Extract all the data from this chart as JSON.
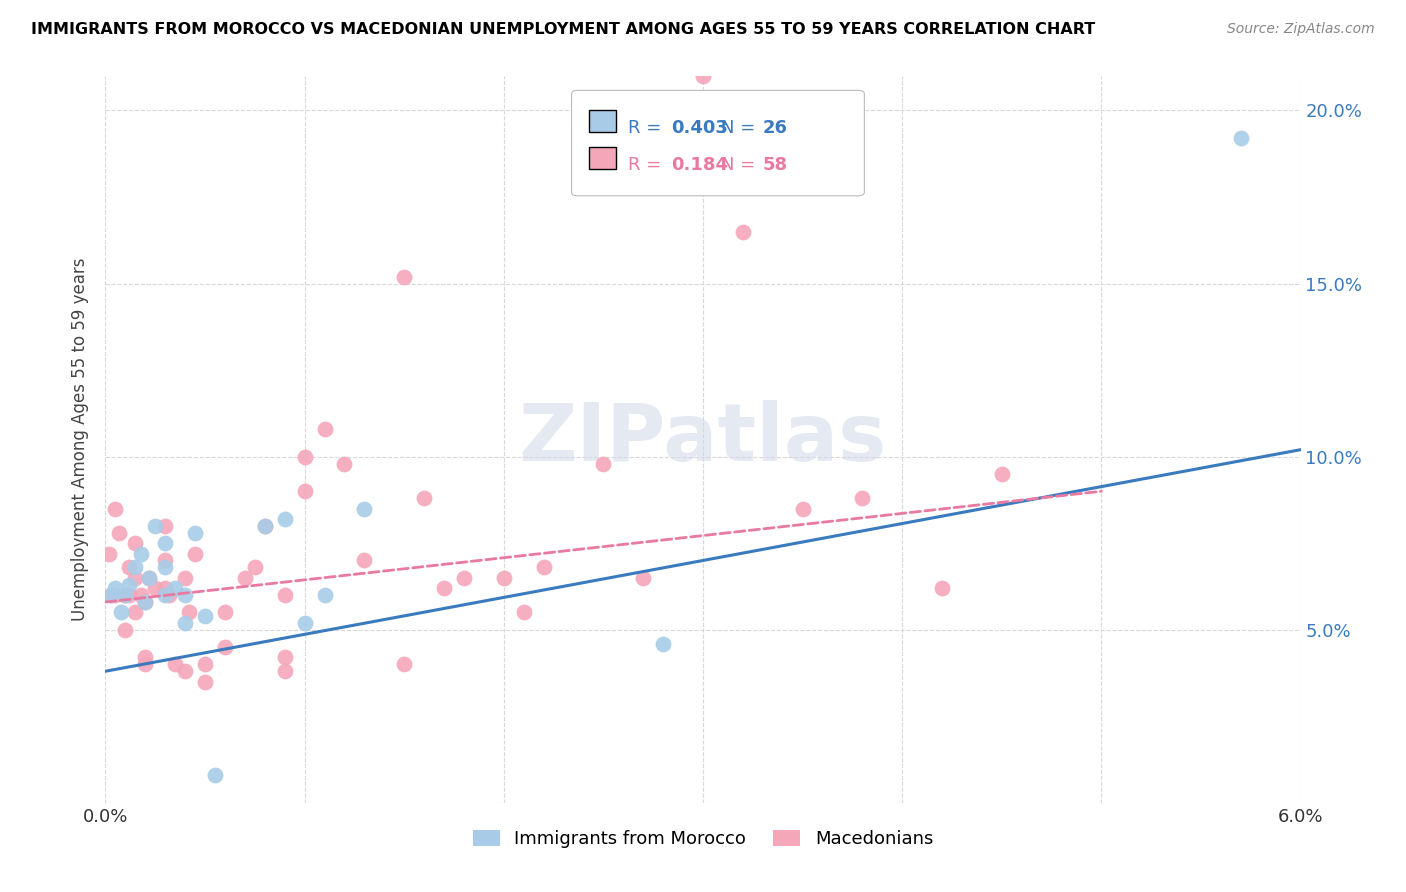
{
  "title": "IMMIGRANTS FROM MOROCCO VS MACEDONIAN UNEMPLOYMENT AMONG AGES 55 TO 59 YEARS CORRELATION CHART",
  "source": "Source: ZipAtlas.com",
  "ylabel": "Unemployment Among Ages 55 to 59 years",
  "xlim": [
    0.0,
    0.06
  ],
  "ylim": [
    0.0,
    0.21
  ],
  "xtick_positions": [
    0.0,
    0.01,
    0.02,
    0.03,
    0.04,
    0.05,
    0.06
  ],
  "xtick_labels": [
    "0.0%",
    "",
    "",
    "",
    "",
    "",
    "6.0%"
  ],
  "ytick_positions": [
    0.0,
    0.05,
    0.1,
    0.15,
    0.2
  ],
  "ytick_labels_right": [
    "",
    "5.0%",
    "10.0%",
    "15.0%",
    "20.0%"
  ],
  "blue_scatter_color": "#a8cce8",
  "pink_scatter_color": "#f4a7b9",
  "blue_line_color": "#3a7bbf",
  "pink_line_color": "#e87aa0",
  "legend_R_blue": "0.403",
  "legend_N_blue": "26",
  "legend_R_pink": "0.184",
  "legend_N_pink": "58",
  "legend_label_blue": "Immigrants from Morocco",
  "legend_label_pink": "Macedonians",
  "blue_x": [
    0.0003,
    0.0005,
    0.0008,
    0.001,
    0.0012,
    0.0015,
    0.0018,
    0.002,
    0.0022,
    0.0025,
    0.003,
    0.003,
    0.003,
    0.0035,
    0.004,
    0.004,
    0.0045,
    0.005,
    0.0055,
    0.008,
    0.009,
    0.01,
    0.011,
    0.013,
    0.028,
    0.057
  ],
  "blue_y": [
    0.06,
    0.062,
    0.055,
    0.06,
    0.063,
    0.068,
    0.072,
    0.058,
    0.065,
    0.08,
    0.06,
    0.068,
    0.075,
    0.062,
    0.06,
    0.052,
    0.078,
    0.054,
    0.008,
    0.08,
    0.082,
    0.052,
    0.06,
    0.085,
    0.046,
    0.192
  ],
  "pink_x": [
    0.0002,
    0.0003,
    0.0005,
    0.0005,
    0.0007,
    0.001,
    0.001,
    0.0012,
    0.0012,
    0.0015,
    0.0015,
    0.0015,
    0.0018,
    0.002,
    0.002,
    0.002,
    0.0022,
    0.0025,
    0.003,
    0.003,
    0.003,
    0.0032,
    0.0035,
    0.004,
    0.004,
    0.0042,
    0.0045,
    0.005,
    0.005,
    0.006,
    0.006,
    0.007,
    0.0075,
    0.008,
    0.009,
    0.009,
    0.009,
    0.01,
    0.01,
    0.011,
    0.012,
    0.013,
    0.015,
    0.015,
    0.016,
    0.017,
    0.018,
    0.02,
    0.021,
    0.022,
    0.025,
    0.027,
    0.03,
    0.032,
    0.035,
    0.038,
    0.042,
    0.045
  ],
  "pink_y": [
    0.072,
    0.06,
    0.085,
    0.06,
    0.078,
    0.06,
    0.05,
    0.06,
    0.068,
    0.075,
    0.055,
    0.065,
    0.06,
    0.04,
    0.042,
    0.058,
    0.065,
    0.062,
    0.062,
    0.07,
    0.08,
    0.06,
    0.04,
    0.038,
    0.065,
    0.055,
    0.072,
    0.035,
    0.04,
    0.045,
    0.055,
    0.065,
    0.068,
    0.08,
    0.06,
    0.038,
    0.042,
    0.09,
    0.1,
    0.108,
    0.098,
    0.07,
    0.04,
    0.152,
    0.088,
    0.062,
    0.065,
    0.065,
    0.055,
    0.068,
    0.098,
    0.065,
    0.21,
    0.165,
    0.085,
    0.088,
    0.062,
    0.095
  ],
  "blue_trendline_x": [
    0.0,
    0.06
  ],
  "blue_trendline_y": [
    0.038,
    0.102
  ],
  "pink_trendline_x": [
    0.0,
    0.05
  ],
  "pink_trendline_y": [
    0.058,
    0.09
  ],
  "watermark_text": "ZIPatlas",
  "watermark_color": "#d0d8e8",
  "background_color": "#ffffff",
  "grid_color": "#d8d8d8"
}
